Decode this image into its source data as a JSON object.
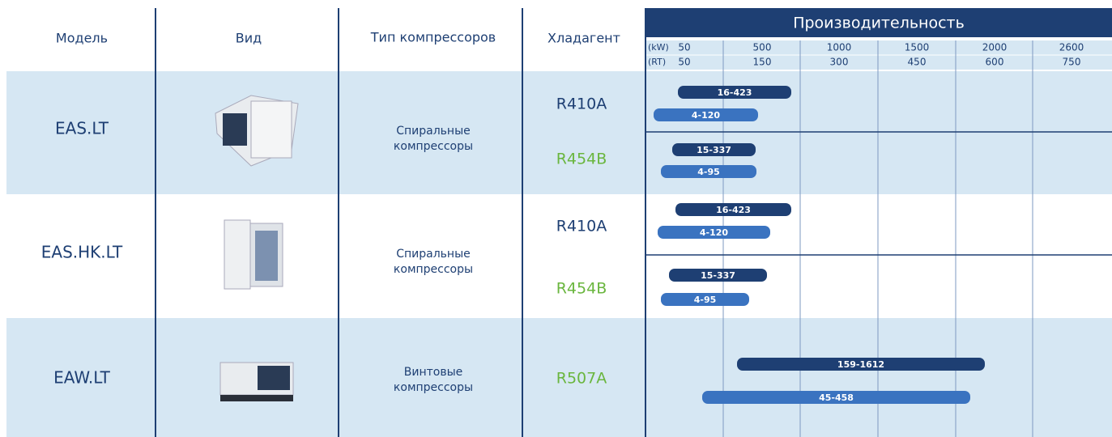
{
  "header": {
    "columns": [
      "Модель",
      "Вид",
      "Тип компрессоров",
      "Хладагент"
    ],
    "performance": "Производительность"
  },
  "scale": {
    "kw_unit": "(kW)",
    "kw": [
      50,
      500,
      1000,
      1500,
      2000,
      2600
    ],
    "rt_unit": "(RT)",
    "rt": [
      50,
      150,
      300,
      450,
      600,
      750
    ]
  },
  "rows": [
    {
      "model": "EAS.LT",
      "compressor": [
        "Спиральные",
        "компрессоры"
      ],
      "refrigerants": [
        {
          "name": "R410A",
          "ranges": [
            "16-423",
            "4-120"
          ]
        },
        {
          "name": "R454B",
          "ranges": [
            "15-337",
            "4-95"
          ]
        }
      ]
    },
    {
      "model": "EAS.HK.LT",
      "compressor": [
        "Спиральные",
        "компрессоры"
      ],
      "refrigerants": [
        {
          "name": "R410A",
          "ranges": [
            "16-423",
            "4-120"
          ]
        },
        {
          "name": "R454B",
          "ranges": [
            "15-337",
            "4-95"
          ]
        }
      ]
    },
    {
      "model": "EAW.LT",
      "compressor": [
        "Винтовые",
        "компрессоры"
      ],
      "refrigerants": [
        {
          "name": "R507A",
          "ranges": [
            "159-1612",
            "45-458"
          ]
        }
      ]
    }
  ]
}
